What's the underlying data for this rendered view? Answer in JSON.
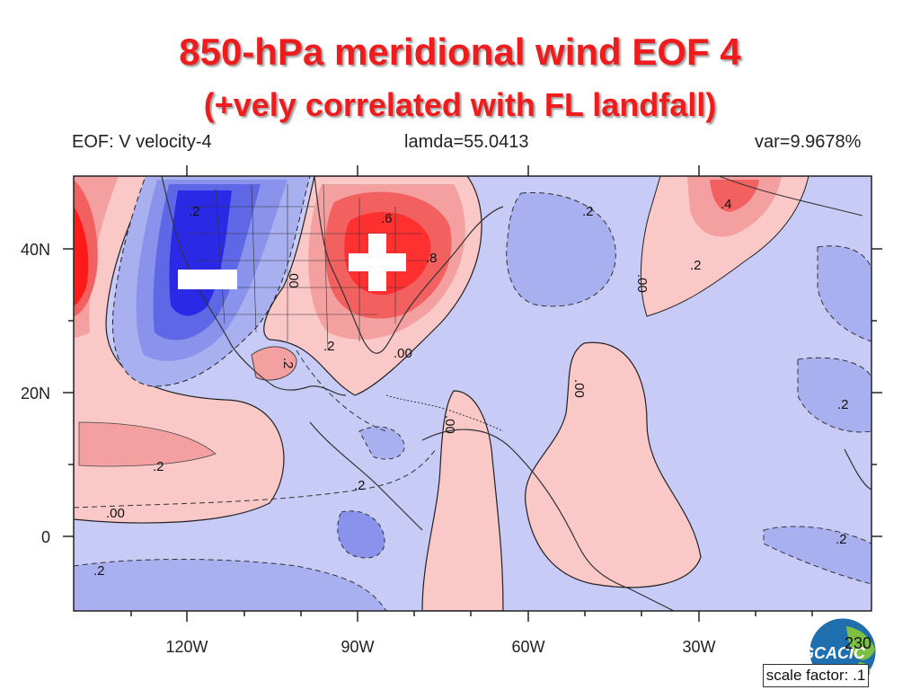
{
  "title_line1": "850-hPa meridional wind EOF 4",
  "title_line2": "(+vely correlated with FL landfall)",
  "header": {
    "eof_label": "EOF: V velocity-4",
    "lamda": "lamda=55.0413",
    "variance": "var=9.9678%"
  },
  "map": {
    "lat_labels": [
      "40N",
      "20N",
      "0"
    ],
    "lon_labels": [
      "120W",
      "90W",
      "60W",
      "30W"
    ],
    "contour_labels": [
      ".2",
      ".6",
      ".4",
      ".2",
      ".00",
      ".2",
      ".00",
      ".8",
      ".2",
      ".00",
      ".00",
      ".00",
      ".2",
      ".2",
      ".2",
      ".00",
      ".2",
      ".2",
      ".2"
    ],
    "minus_symbol": "−",
    "plus_symbol": "+"
  },
  "colors": {
    "title": "#ee1c1c",
    "positive_strong": "#ff1a1a",
    "positive_weak": "#fbc8c8",
    "negative_strong": "#2a2ae6",
    "negative_weak": "#c7cbf6"
  },
  "logo_text": "GCACIC",
  "page_number": "230",
  "scale_factor": "scale factor: .1"
}
